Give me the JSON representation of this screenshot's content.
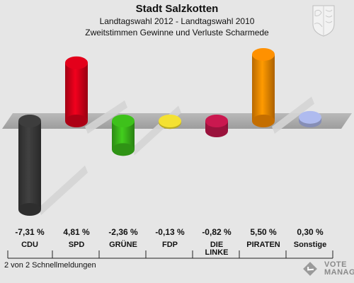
{
  "header": {
    "title": "Stadt Salzkotten",
    "subtitle": "Landtagswahl 2012 - Landtagswahl 2010",
    "subtitle2": "Zweitstimmen Gewinne und Verluste Scharmede"
  },
  "footer": {
    "note": "2 von 2 Schnellmeldungen",
    "brand_line1": "VOTE",
    "brand_line2": "MANAGER"
  },
  "chart_data": {
    "type": "bar",
    "title": "Stadt Salzkotten",
    "categories": [
      "CDU",
      "SPD",
      "GRÜNE",
      "FDP",
      "DIE LINKE",
      "PIRATEN",
      "Sonstige"
    ],
    "category_lines": [
      [
        "CDU"
      ],
      [
        "SPD"
      ],
      [
        "GRÜNE"
      ],
      [
        "FDP"
      ],
      [
        "DIE",
        "LINKE"
      ],
      [
        "PIRATEN"
      ],
      [
        "Sonstige"
      ]
    ],
    "values": [
      -7.31,
      4.81,
      -2.36,
      -0.13,
      -0.82,
      5.5,
      0.3
    ],
    "value_labels": [
      "-7,31 %",
      "4,81 %",
      "-2,36 %",
      "-0,13 %",
      "-0,82 %",
      "5,50 %",
      "0,30 %"
    ],
    "colors": [
      "#3a3a3a",
      "#d8001a",
      "#3bb81a",
      "#e8d630",
      "#c0174b",
      "#f58a00",
      "#a7b2e4"
    ],
    "ylim": [
      -7.31,
      5.5
    ],
    "grid": false,
    "legend": "none"
  }
}
